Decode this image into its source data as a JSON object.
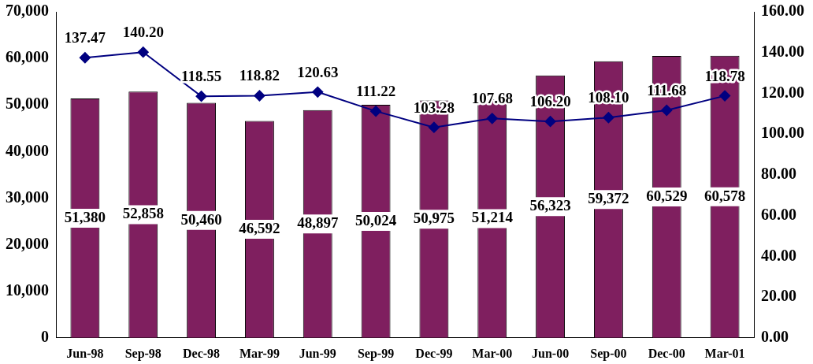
{
  "chart_data": {
    "type": "bar",
    "categories": [
      "Jun-98",
      "Sep-98",
      "Dec-98",
      "Mar-99",
      "Jun-99",
      "Sep-99",
      "Dec-99",
      "Mar-00",
      "Jun-00",
      "Sep-00",
      "Dec-00",
      "Mar-01"
    ],
    "series": [
      {
        "color": "#7f1f5f",
        "values": [
          51380,
          52858,
          50460,
          46592,
          48897,
          50024,
          50975,
          51214,
          56323,
          59372,
          60529,
          60578
        ],
        "value_labels": [
          "51,380",
          "52,858",
          "50,460",
          "46,592",
          "48,897",
          "50,024",
          "50,975",
          "51,214",
          "56,323",
          "59,372",
          "60,529",
          "60,578"
        ]
      },
      {
        "type": "line",
        "axis": "y2",
        "color": "#000080",
        "values": [
          137.47,
          140.2,
          118.55,
          118.82,
          120.63,
          111.22,
          103.28,
          107.68,
          106.2,
          108.1,
          111.68,
          118.78
        ],
        "value_labels": [
          "137.47",
          "140.20",
          "118.55",
          "118.82",
          "120.63",
          "111.22",
          "103.28",
          "107.68",
          "106.20",
          "108.10",
          "111.68",
          "118.78"
        ]
      }
    ],
    "ylim": [
      0,
      70000
    ],
    "yticks": [
      0,
      {
        "value": 10000,
        "label": "10,000"
      },
      {
        "value": 20000,
        "label": "20,000"
      },
      {
        "value": 30000,
        "label": "30,000"
      },
      {
        "value": 40000,
        "label": "40,000"
      },
      {
        "value": 50000,
        "label": "50,000"
      },
      {
        "value": 60000,
        "label": "60,000"
      },
      {
        "value": 70000,
        "label": "70,000"
      }
    ],
    "y2lim": [
      0,
      160
    ],
    "y2ticks": [
      {
        "value": 0,
        "label": "0.00"
      },
      {
        "value": 20,
        "label": "20.00"
      },
      {
        "value": 40,
        "label": "40.00"
      },
      {
        "value": 60,
        "label": "60.00"
      },
      {
        "value": 80,
        "label": "80.00"
      },
      {
        "value": 100,
        "label": "100.00"
      },
      {
        "value": 120,
        "label": "120.00"
      },
      {
        "value": 140,
        "label": "140.00"
      },
      {
        "value": 160,
        "label": "160.00"
      }
    ],
    "marker": "diamond",
    "grid": false,
    "legend": false
  }
}
